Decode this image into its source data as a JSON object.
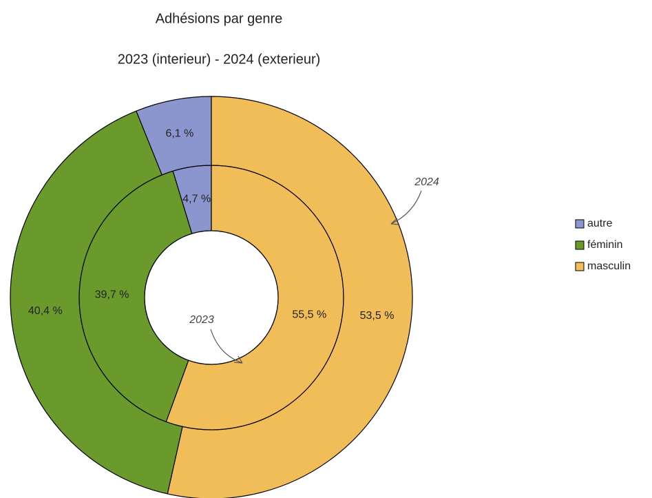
{
  "chart_data": {
    "type": "donut",
    "title": "Adhésions par genre",
    "subtitle": "2023 (interieur) - 2024 (exterieur)",
    "categories": [
      "autre",
      "féminin",
      "masculin"
    ],
    "colors": [
      "#8b96cf",
      "#6a9a2c",
      "#f0bd58"
    ],
    "series": [
      {
        "name": "2023",
        "values": [
          4.7,
          39.7,
          55.5
        ],
        "value_labels": [
          "4,7 %",
          "39,7 %",
          "55,5 %"
        ]
      },
      {
        "name": "2024",
        "values": [
          6.1,
          40.4,
          53.5
        ],
        "value_labels": [
          "6,1 %",
          "40,4 %",
          "53,5 %"
        ]
      }
    ],
    "legend": "right"
  }
}
